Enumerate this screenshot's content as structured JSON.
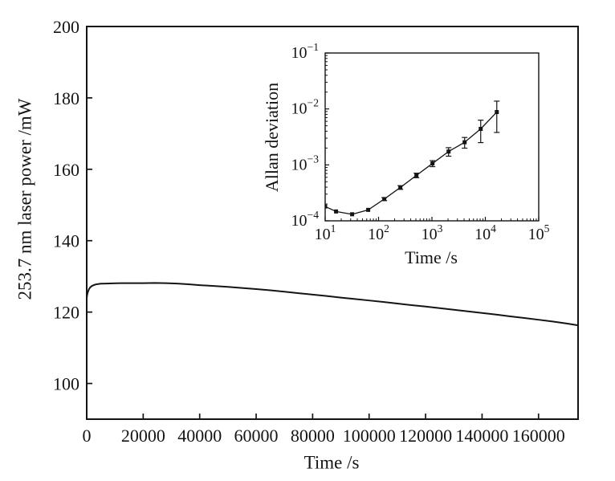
{
  "figure": {
    "background": "#ffffff",
    "axis_color": "#141414",
    "series_color": "#141414"
  },
  "chart_data": [
    {
      "id": "main",
      "type": "line",
      "title": "",
      "xlabel": "Time /s",
      "ylabel": "253.7 nm laser power /mW",
      "xscale": "linear",
      "yscale": "linear",
      "xlim": [
        0,
        174000
      ],
      "ylim": [
        90,
        200
      ],
      "grid": false,
      "legend": "none",
      "xticks": {
        "values": [
          0,
          20000,
          40000,
          60000,
          80000,
          100000,
          120000,
          140000,
          160000
        ],
        "labels": [
          "0",
          "20000",
          "40000",
          "60000",
          "80000",
          "100000",
          "120000",
          "140000",
          "160000"
        ]
      },
      "yticks": {
        "values": [
          100,
          120,
          140,
          160,
          180,
          200
        ],
        "labels": [
          "100",
          "120",
          "140",
          "160",
          "180",
          "200"
        ]
      },
      "series": [
        {
          "name": "253.7 nm laser power",
          "marker": "none",
          "x": [
            0,
            150,
            400,
            800,
            1200,
            1800,
            2600,
            3500,
            5000,
            7000,
            9000,
            12000,
            16000,
            20000,
            24000,
            28000,
            32000,
            36000,
            40000,
            45000,
            50000,
            55000,
            60000,
            65000,
            70000,
            75000,
            80000,
            85000,
            90000,
            95000,
            100000,
            105000,
            110000,
            115000,
            120000,
            125000,
            130000,
            135000,
            140000,
            145000,
            150000,
            155000,
            160000,
            165000,
            170000,
            174000
          ],
          "y": [
            123.8,
            124.8,
            125.6,
            126.4,
            126.9,
            127.3,
            127.6,
            127.8,
            127.95,
            128.0,
            128.05,
            128.1,
            128.1,
            128.1,
            128.15,
            128.1,
            128.0,
            127.8,
            127.55,
            127.3,
            127.05,
            126.75,
            126.45,
            126.1,
            125.7,
            125.3,
            124.9,
            124.5,
            124.05,
            123.65,
            123.25,
            122.85,
            122.4,
            121.95,
            121.55,
            121.1,
            120.65,
            120.2,
            119.75,
            119.3,
            118.8,
            118.35,
            117.85,
            117.35,
            116.8,
            116.3
          ]
        }
      ]
    },
    {
      "id": "inset",
      "type": "line",
      "title": "",
      "xlabel": "Time /s",
      "ylabel": "Allan deviation",
      "xscale": "log",
      "yscale": "log",
      "xlim": [
        10,
        100000
      ],
      "ylim": [
        0.0001,
        0.1
      ],
      "grid": false,
      "legend": "none",
      "minor_ticks": true,
      "xticks": {
        "values": [
          10,
          100,
          1000,
          10000,
          100000
        ],
        "labels": [
          "10^1",
          "10^2",
          "10^3",
          "10^4",
          "10^5"
        ]
      },
      "yticks": {
        "values": [
          0.0001,
          0.001,
          0.01,
          0.1
        ],
        "labels": [
          "10^−4",
          "10^−3",
          "10^−2",
          "10^−1"
        ]
      },
      "series": [
        {
          "name": "Allan deviation",
          "marker": "square",
          "x": [
            10,
            16,
            32,
            64,
            128,
            256,
            512,
            1024,
            2048,
            4096,
            8192,
            16384
          ],
          "y": [
            0.00018,
            0.000147,
            0.000131,
            0.000157,
            0.000245,
            0.000395,
            0.00065,
            0.00106,
            0.00173,
            0.00254,
            0.0044,
            0.0088
          ],
          "yerr": [
            0,
            0,
            0,
            0,
            1.5e-05,
            3e-05,
            6e-05,
            0.00013,
            0.0003,
            0.00055,
            0.0019,
            0.005
          ]
        }
      ]
    }
  ]
}
